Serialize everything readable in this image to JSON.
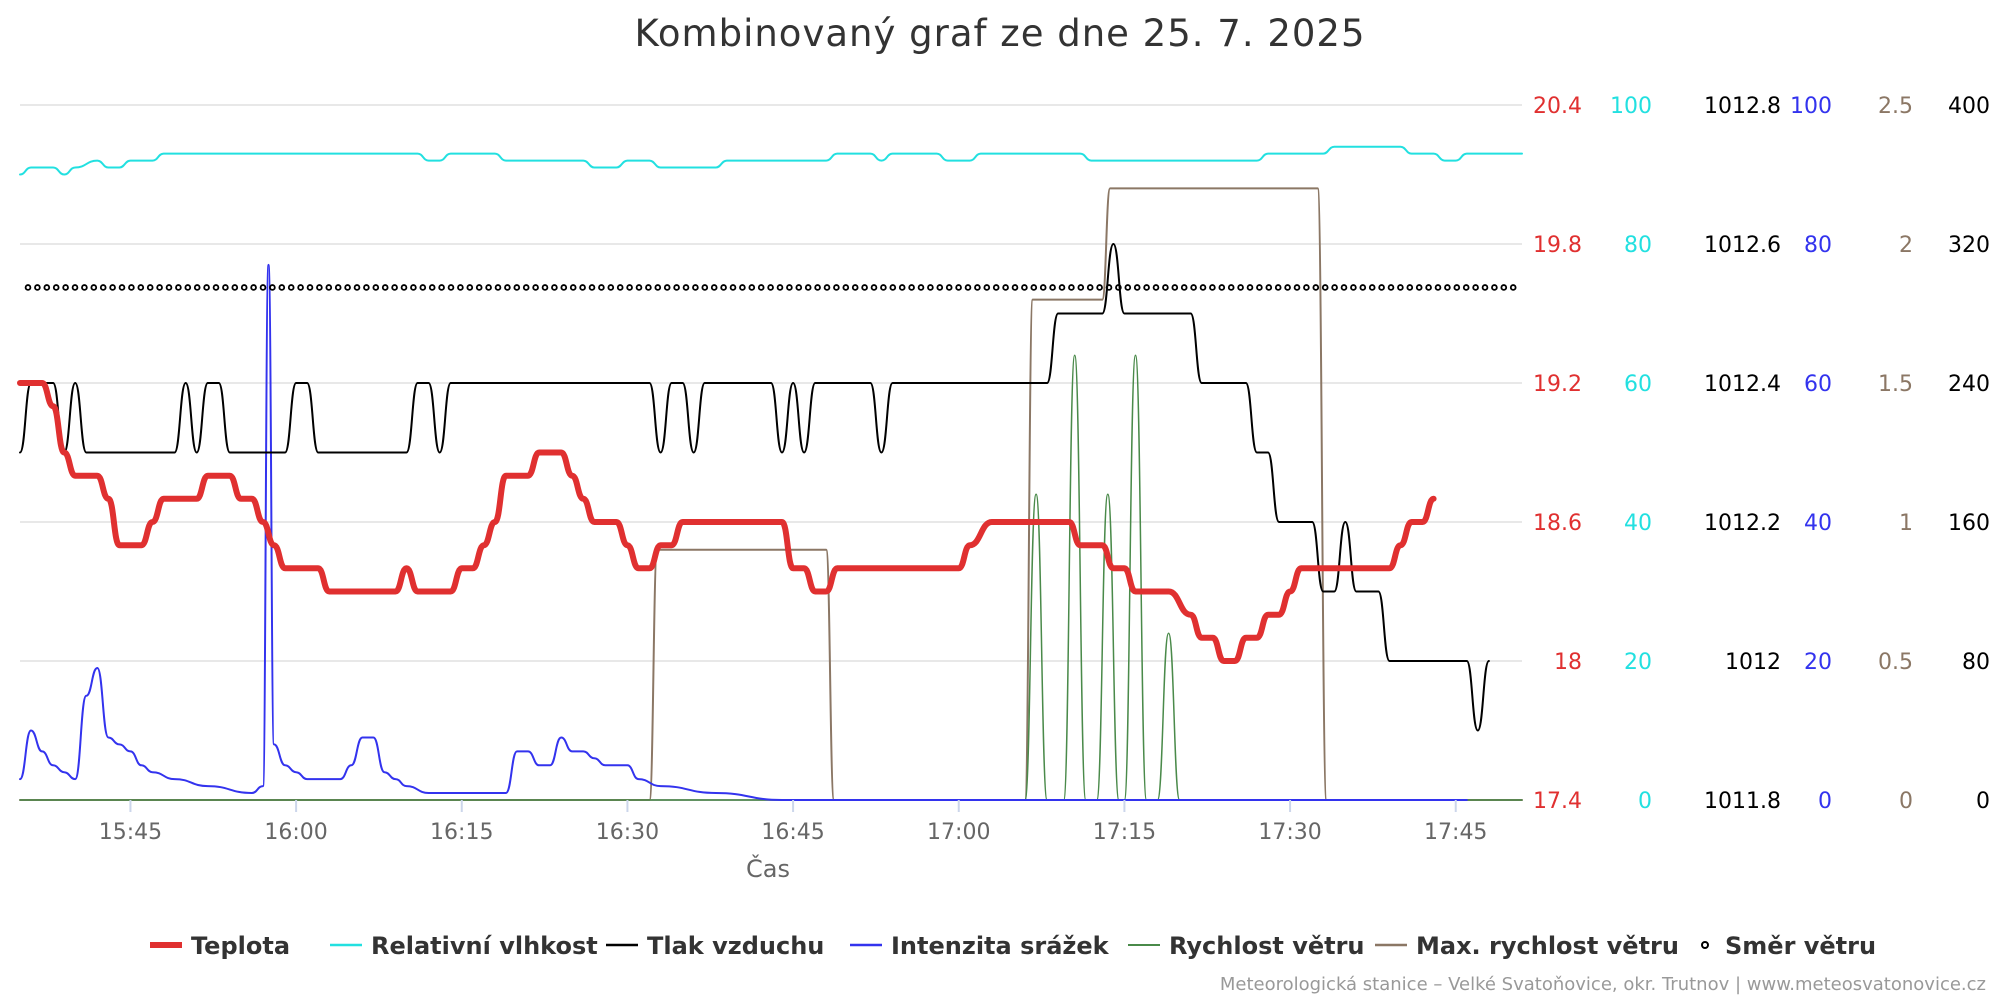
{
  "chart_data": {
    "type": "line",
    "title": "Kombinovaný graf ze dne 25. 7. 2025",
    "xlabel": "Čas",
    "x_ticks": [
      "15:45",
      "16:00",
      "16:15",
      "16:30",
      "16:45",
      "17:00",
      "17:15",
      "17:30",
      "17:45"
    ],
    "x_range": [
      "15:35",
      "17:51"
    ],
    "credits": "Meteorologická stanice – Velké Svatoňovice, okr. Trutnov | www.meteosvatonovice.cz",
    "grid": true,
    "legend_position": "bottom",
    "axes": [
      {
        "id": "temp",
        "color": "#e03030",
        "range": [
          17.4,
          20.4
        ],
        "ticks": [
          "17.4",
          "18",
          "18.6",
          "19.2",
          "19.8",
          "20.4"
        ]
      },
      {
        "id": "hum",
        "color": "#22e0e0",
        "range": [
          0,
          100
        ],
        "ticks": [
          "0",
          "20",
          "40",
          "60",
          "80",
          "100"
        ]
      },
      {
        "id": "press",
        "color": "#000000",
        "range": [
          1011.8,
          1012.8
        ],
        "ticks": [
          "1011.8",
          "1012",
          "1012.2",
          "1012.4",
          "1012.6",
          "1012.8"
        ]
      },
      {
        "id": "rain",
        "color": "#3333ee",
        "range": [
          0,
          100
        ],
        "ticks": [
          "0",
          "20",
          "40",
          "60",
          "80",
          "100"
        ]
      },
      {
        "id": "wind",
        "color": "#8b7765",
        "range": [
          0,
          2.5
        ],
        "ticks": [
          "0",
          "0.5",
          "1",
          "1.5",
          "2",
          "2.5"
        ]
      },
      {
        "id": "dir",
        "color": "#000000",
        "range": [
          0,
          400
        ],
        "ticks": [
          "0",
          "80",
          "160",
          "240",
          "320",
          "400"
        ]
      }
    ],
    "series": [
      {
        "name": "Teplota",
        "axis": "temp",
        "color": "#e03030",
        "width": 6,
        "curve": "smooth",
        "marker": "line",
        "points": [
          [
            35,
            19.2
          ],
          [
            37,
            19.2
          ],
          [
            38,
            19.1
          ],
          [
            39,
            18.9
          ],
          [
            40,
            18.8
          ],
          [
            42,
            18.8
          ],
          [
            43,
            18.7
          ],
          [
            44,
            18.5
          ],
          [
            46,
            18.5
          ],
          [
            47,
            18.6
          ],
          [
            48,
            18.7
          ],
          [
            51,
            18.7
          ],
          [
            52,
            18.8
          ],
          [
            54,
            18.8
          ],
          [
            55,
            18.7
          ],
          [
            56,
            18.7
          ],
          [
            57,
            18.6
          ],
          [
            58,
            18.5
          ],
          [
            59,
            18.4
          ],
          [
            62,
            18.4
          ],
          [
            63,
            18.3
          ],
          [
            69,
            18.3
          ],
          [
            70,
            18.4
          ],
          [
            71,
            18.3
          ],
          [
            74,
            18.3
          ],
          [
            75,
            18.4
          ],
          [
            76,
            18.4
          ],
          [
            77,
            18.5
          ],
          [
            78,
            18.6
          ],
          [
            79,
            18.8
          ],
          [
            81,
            18.8
          ],
          [
            82,
            18.9
          ],
          [
            84,
            18.9
          ],
          [
            85,
            18.8
          ],
          [
            86,
            18.7
          ],
          [
            87,
            18.6
          ],
          [
            89,
            18.6
          ],
          [
            90,
            18.5
          ],
          [
            91,
            18.4
          ],
          [
            92,
            18.4
          ],
          [
            93,
            18.5
          ],
          [
            94,
            18.5
          ],
          [
            95,
            18.6
          ],
          [
            104,
            18.6
          ],
          [
            105,
            18.4
          ],
          [
            106,
            18.4
          ],
          [
            107,
            18.3
          ],
          [
            108,
            18.3
          ],
          [
            109,
            18.4
          ],
          [
            120,
            18.4
          ],
          [
            121,
            18.5
          ],
          [
            123,
            18.6
          ],
          [
            130,
            18.6
          ],
          [
            131,
            18.5
          ],
          [
            133,
            18.5
          ],
          [
            134,
            18.4
          ],
          [
            135,
            18.4
          ],
          [
            136,
            18.3
          ],
          [
            139,
            18.3
          ],
          [
            141,
            18.2
          ],
          [
            142,
            18.1
          ],
          [
            143,
            18.1
          ],
          [
            144,
            18.0
          ],
          [
            145,
            18.0
          ],
          [
            146,
            18.1
          ],
          [
            147,
            18.1
          ],
          [
            148,
            18.2
          ],
          [
            149,
            18.2
          ],
          [
            150,
            18.3
          ],
          [
            151,
            18.4
          ],
          [
            159,
            18.4
          ],
          [
            160,
            18.5
          ],
          [
            161,
            18.6
          ],
          [
            162,
            18.6
          ],
          [
            163,
            18.7
          ]
        ]
      },
      {
        "name": "Relativní vlhkost",
        "axis": "hum",
        "color": "#22e0e0",
        "width": 2,
        "curve": "smooth",
        "marker": "line",
        "points": [
          [
            35,
            90
          ],
          [
            36,
            91
          ],
          [
            38,
            91
          ],
          [
            39,
            90
          ],
          [
            40,
            91
          ],
          [
            42,
            92
          ],
          [
            43,
            91
          ],
          [
            44,
            91
          ],
          [
            45,
            92
          ],
          [
            47,
            92
          ],
          [
            48,
            93
          ],
          [
            71,
            93
          ],
          [
            72,
            92
          ],
          [
            73,
            92
          ],
          [
            74,
            93
          ],
          [
            78,
            93
          ],
          [
            79,
            92
          ],
          [
            86,
            92
          ],
          [
            87,
            91
          ],
          [
            89,
            91
          ],
          [
            90,
            92
          ],
          [
            92,
            92
          ],
          [
            93,
            91
          ],
          [
            98,
            91
          ],
          [
            99,
            92
          ],
          [
            108,
            92
          ],
          [
            109,
            93
          ],
          [
            112,
            93
          ],
          [
            113,
            92
          ],
          [
            114,
            93
          ],
          [
            118,
            93
          ],
          [
            119,
            92
          ],
          [
            121,
            92
          ],
          [
            122,
            93
          ],
          [
            131,
            93
          ],
          [
            132,
            92
          ],
          [
            147,
            92
          ],
          [
            148,
            93
          ],
          [
            153,
            93
          ],
          [
            154,
            94
          ],
          [
            160,
            94
          ],
          [
            161,
            93
          ],
          [
            163,
            93
          ],
          [
            164,
            92
          ],
          [
            165,
            92
          ],
          [
            166,
            93
          ],
          [
            171,
            93
          ]
        ]
      },
      {
        "name": "Tlak vzduchu",
        "axis": "press",
        "color": "#000000",
        "width": 2,
        "curve": "smooth",
        "marker": "line",
        "points": [
          [
            35,
            1012.3
          ],
          [
            36,
            1012.4
          ],
          [
            38,
            1012.4
          ],
          [
            39,
            1012.3
          ],
          [
            40,
            1012.4
          ],
          [
            41,
            1012.3
          ],
          [
            49,
            1012.3
          ],
          [
            50,
            1012.4
          ],
          [
            51,
            1012.3
          ],
          [
            52,
            1012.4
          ],
          [
            53,
            1012.4
          ],
          [
            54,
            1012.3
          ],
          [
            59,
            1012.3
          ],
          [
            60,
            1012.4
          ],
          [
            61,
            1012.4
          ],
          [
            62,
            1012.3
          ],
          [
            70,
            1012.3
          ],
          [
            71,
            1012.4
          ],
          [
            72,
            1012.4
          ],
          [
            73,
            1012.3
          ],
          [
            74,
            1012.4
          ],
          [
            92,
            1012.4
          ],
          [
            93,
            1012.3
          ],
          [
            94,
            1012.4
          ],
          [
            95,
            1012.4
          ],
          [
            96,
            1012.3
          ],
          [
            97,
            1012.4
          ],
          [
            103,
            1012.4
          ],
          [
            104,
            1012.3
          ],
          [
            105,
            1012.4
          ],
          [
            106,
            1012.3
          ],
          [
            107,
            1012.4
          ],
          [
            112,
            1012.4
          ],
          [
            113,
            1012.3
          ],
          [
            114,
            1012.4
          ],
          [
            128,
            1012.4
          ],
          [
            129,
            1012.5
          ],
          [
            133,
            1012.5
          ],
          [
            134,
            1012.6
          ],
          [
            135,
            1012.5
          ],
          [
            141,
            1012.5
          ],
          [
            142,
            1012.4
          ],
          [
            146,
            1012.4
          ],
          [
            147,
            1012.3
          ],
          [
            148,
            1012.3
          ],
          [
            149,
            1012.2
          ],
          [
            152,
            1012.2
          ],
          [
            153,
            1012.1
          ],
          [
            154,
            1012.1
          ],
          [
            155,
            1012.2
          ],
          [
            156,
            1012.1
          ],
          [
            158,
            1012.1
          ],
          [
            159,
            1012.0
          ],
          [
            166,
            1012.0
          ],
          [
            167,
            1011.9
          ],
          [
            168,
            1012.0
          ]
        ]
      },
      {
        "name": "Intenzita srážek",
        "axis": "rain",
        "color": "#3333ee",
        "width": 2,
        "curve": "smooth",
        "marker": "line",
        "points": [
          [
            35,
            3
          ],
          [
            36,
            10
          ],
          [
            37,
            7
          ],
          [
            38,
            5
          ],
          [
            39,
            4
          ],
          [
            40,
            3
          ],
          [
            41,
            15
          ],
          [
            42,
            19
          ],
          [
            43,
            9
          ],
          [
            44,
            8
          ],
          [
            45,
            7
          ],
          [
            46,
            5
          ],
          [
            47,
            4
          ],
          [
            49,
            3
          ],
          [
            52,
            2
          ],
          [
            56,
            1
          ],
          [
            57,
            2
          ],
          [
            57.5,
            77
          ],
          [
            58,
            8
          ],
          [
            59,
            5
          ],
          [
            60,
            4
          ],
          [
            61,
            3
          ],
          [
            62,
            3
          ],
          [
            63,
            3
          ],
          [
            64,
            3
          ],
          [
            65,
            5
          ],
          [
            66,
            9
          ],
          [
            67,
            9
          ],
          [
            68,
            4
          ],
          [
            69,
            3
          ],
          [
            70,
            2
          ],
          [
            72,
            1
          ],
          [
            76,
            1
          ],
          [
            78,
            1
          ],
          [
            79,
            1
          ],
          [
            80,
            7
          ],
          [
            81,
            7
          ],
          [
            82,
            5
          ],
          [
            83,
            5
          ],
          [
            84,
            9
          ],
          [
            85,
            7
          ],
          [
            86,
            7
          ],
          [
            87,
            6
          ],
          [
            88,
            5
          ],
          [
            89,
            5
          ],
          [
            90,
            5
          ],
          [
            91,
            3
          ],
          [
            93,
            2
          ],
          [
            98,
            1
          ],
          [
            104,
            0
          ],
          [
            166,
            0
          ],
          [
            151,
            0
          ]
        ]
      },
      {
        "name": "Rychlost větru",
        "axis": "wind",
        "color": "#4a8a4a",
        "width": 1.5,
        "curve": "smooth",
        "marker": "line",
        "points": [
          [
            35,
            0
          ],
          [
            126,
            0
          ],
          [
            127,
            1.1
          ],
          [
            128,
            0
          ],
          [
            128.5,
            0
          ],
          [
            129.5,
            0
          ],
          [
            130.5,
            1.6
          ],
          [
            131.5,
            0
          ],
          [
            132.5,
            0
          ],
          [
            133.5,
            1.1
          ],
          [
            134.5,
            0
          ],
          [
            135,
            0
          ],
          [
            136,
            1.6
          ],
          [
            137,
            0
          ],
          [
            138,
            0
          ],
          [
            139,
            0.6
          ],
          [
            140,
            0
          ],
          [
            171,
            0
          ]
        ]
      },
      {
        "name": "Max. rychlost větru",
        "axis": "wind",
        "color": "#8b7765",
        "width": 2,
        "curve": "smooth",
        "marker": "line",
        "points": [
          [
            35,
            0
          ],
          [
            92,
            0
          ],
          [
            92.7,
            0.9
          ],
          [
            108,
            0.9
          ],
          [
            108.7,
            0
          ],
          [
            126,
            0
          ],
          [
            126.7,
            1.8
          ],
          [
            133,
            1.8
          ],
          [
            133.7,
            2.2
          ],
          [
            152.5,
            2.2
          ],
          [
            153.3,
            0
          ],
          [
            171,
            0
          ]
        ]
      },
      {
        "name": "Směr větru",
        "axis": "dir",
        "color": "#000000",
        "width": 0,
        "curve": "none",
        "marker": "dots",
        "points": [
          [
            35,
            295
          ],
          [
            171,
            295
          ]
        ]
      }
    ]
  }
}
